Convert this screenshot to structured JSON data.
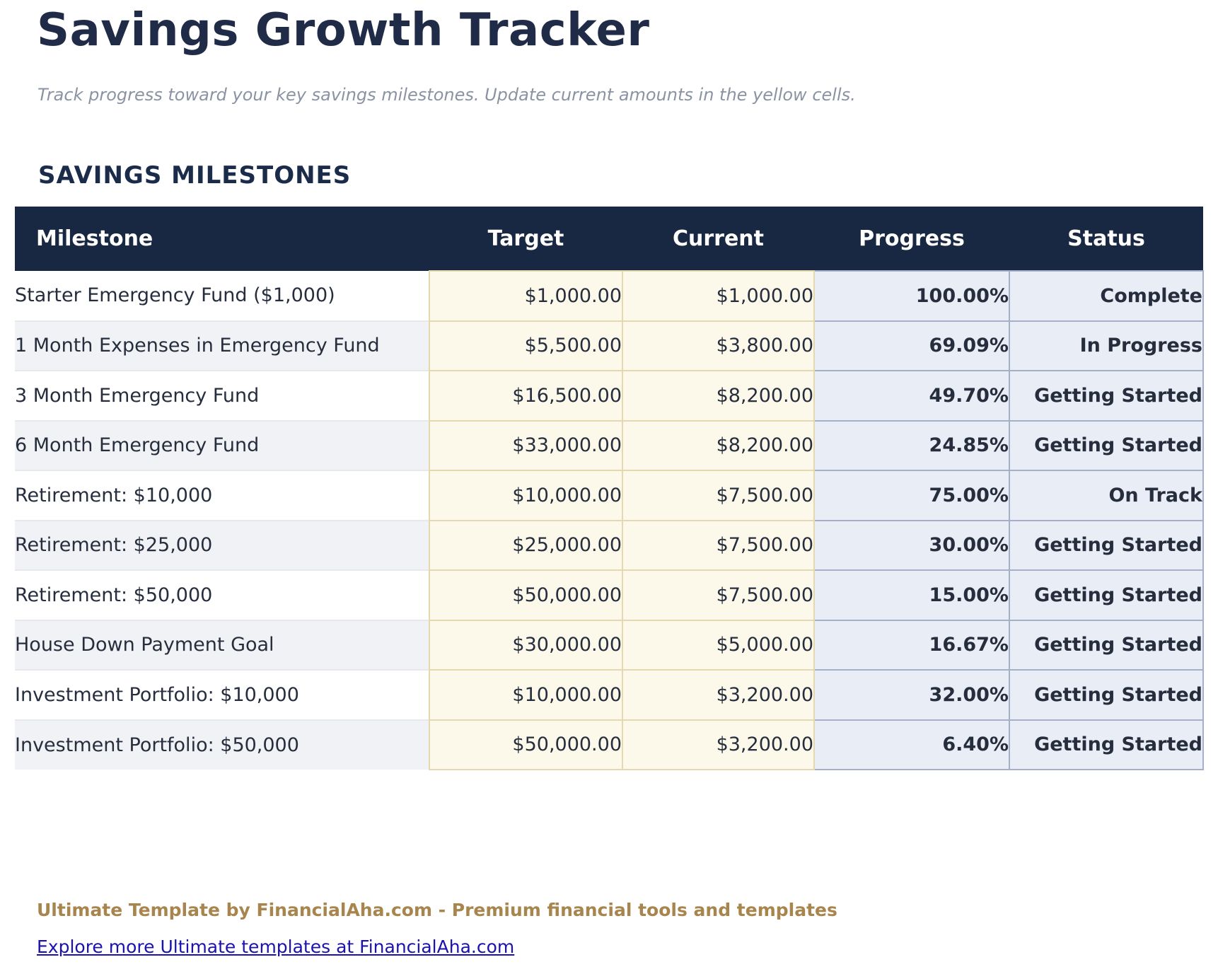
{
  "page": {
    "title": "Savings Growth Tracker",
    "subtitle": "Track progress toward your key savings milestones. Update current amounts in the yellow cells.",
    "section_heading": "SAVINGS MILESTONES"
  },
  "table": {
    "columns": [
      "Milestone",
      "Target",
      "Current",
      "Progress",
      "Status"
    ],
    "rows": [
      {
        "milestone": "Starter Emergency Fund ($1,000)",
        "target": "$1,000.00",
        "current": "$1,000.00",
        "progress": "100.00%",
        "status": "Complete"
      },
      {
        "milestone": "1 Month Expenses in Emergency Fund",
        "target": "$5,500.00",
        "current": "$3,800.00",
        "progress": "69.09%",
        "status": "In Progress"
      },
      {
        "milestone": "3 Month Emergency Fund",
        "target": "$16,500.00",
        "current": "$8,200.00",
        "progress": "49.70%",
        "status": "Getting Started"
      },
      {
        "milestone": "6 Month Emergency Fund",
        "target": "$33,000.00",
        "current": "$8,200.00",
        "progress": "24.85%",
        "status": "Getting Started"
      },
      {
        "milestone": "Retirement: $10,000",
        "target": "$10,000.00",
        "current": "$7,500.00",
        "progress": "75.00%",
        "status": "On Track"
      },
      {
        "milestone": "Retirement: $25,000",
        "target": "$25,000.00",
        "current": "$7,500.00",
        "progress": "30.00%",
        "status": "Getting Started"
      },
      {
        "milestone": "Retirement: $50,000",
        "target": "$50,000.00",
        "current": "$7,500.00",
        "progress": "15.00%",
        "status": "Getting Started"
      },
      {
        "milestone": "House Down Payment Goal",
        "target": "$30,000.00",
        "current": "$5,000.00",
        "progress": "16.67%",
        "status": "Getting Started"
      },
      {
        "milestone": "Investment Portfolio: $10,000",
        "target": "$10,000.00",
        "current": "$3,200.00",
        "progress": "32.00%",
        "status": "Getting Started"
      },
      {
        "milestone": "Investment Portfolio: $50,000",
        "target": "$50,000.00",
        "current": "$3,200.00",
        "progress": "6.40%",
        "status": "Getting Started"
      }
    ]
  },
  "footer": {
    "credit": "Ultimate Template by FinancialAha.com - Premium financial tools and templates",
    "link_label": "Explore more Ultimate templates at FinancialAha.com"
  },
  "colors": {
    "header_bg": "#192842",
    "title_text": "#1f2b47",
    "input_cell_bg": "#fdf9ea",
    "input_cell_border": "#e4d9ae",
    "computed_cell_bg": "#e9edf6",
    "computed_cell_border": "#a5afc7",
    "alt_row_bg": "#f1f2f5",
    "credit_text": "#a7854d",
    "link_text": "#1b12b0"
  }
}
